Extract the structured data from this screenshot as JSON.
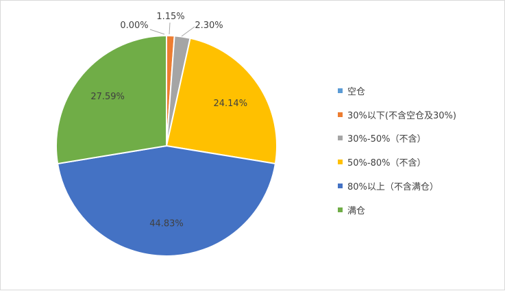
{
  "chart_data": {
    "type": "pie",
    "title": "",
    "legend_position": "right",
    "categories": [
      "空仓",
      "30%以下(不含空仓及30%)",
      "30%-50%（不含）",
      "50%-80%（不含）",
      "80%以上（不含满仓）",
      "满仓"
    ],
    "values": [
      0.0,
      1.15,
      2.3,
      24.14,
      44.83,
      27.59
    ],
    "labels": [
      "0.00%",
      "1.15%",
      "2.30%",
      "24.14%",
      "44.83%",
      "27.59%"
    ],
    "colors": [
      "#5B9BD5",
      "#ED7D31",
      "#A5A5A5",
      "#FFC000",
      "#4472C4",
      "#70AD47"
    ]
  }
}
